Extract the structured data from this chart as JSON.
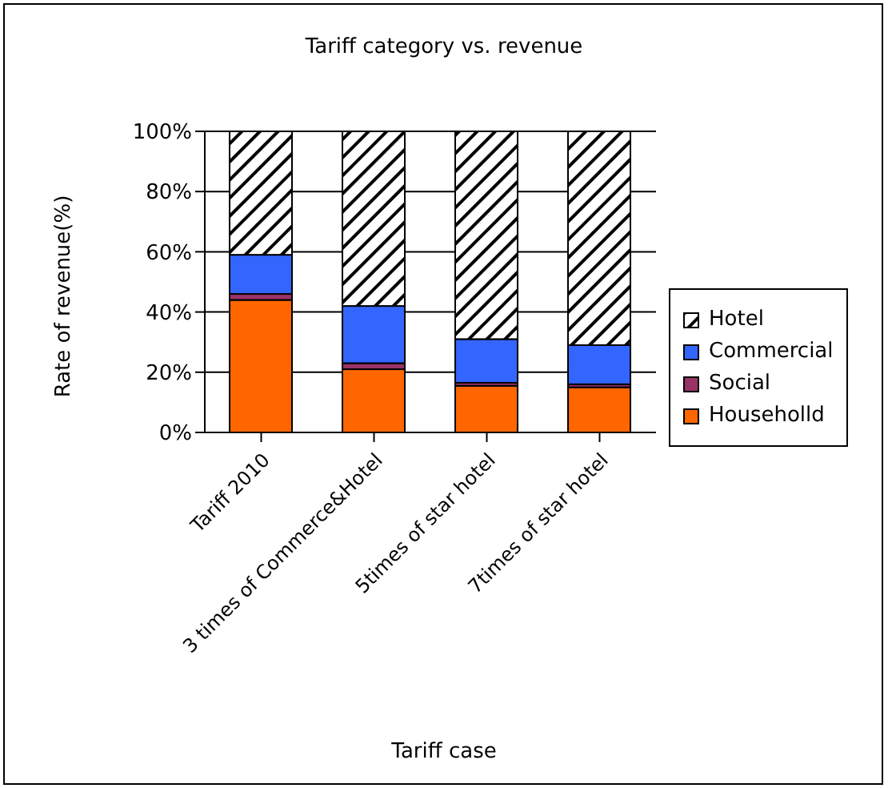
{
  "chart_data": {
    "type": "bar",
    "title": "Tariff category vs. revenue",
    "xlabel": "Tariff case",
    "ylabel": "Rate of revenue(%)",
    "categories": [
      "Tariff 2010",
      "3 times of Commerce&Hotel",
      "5times of star hotel",
      "7times of star hotel"
    ],
    "stacked": true,
    "series": [
      {
        "name": "Householld",
        "color": "#ff6600",
        "values": [
          44,
          21,
          15.5,
          15
        ]
      },
      {
        "name": "Social",
        "color": "#993366",
        "values": [
          2,
          2,
          1,
          1
        ]
      },
      {
        "name": "Commercial",
        "color": "#3366ff",
        "values": [
          13,
          19,
          14.5,
          13
        ]
      },
      {
        "name": "Hotel",
        "color": "#ffffff",
        "values": [
          41,
          58,
          69,
          71
        ]
      }
    ],
    "ylim": [
      0,
      100
    ],
    "yticks": [
      {
        "value": 0,
        "label": "0%"
      },
      {
        "value": 20,
        "label": "20%"
      },
      {
        "value": 40,
        "label": "40%"
      },
      {
        "value": 60,
        "label": "60%"
      },
      {
        "value": 80,
        "label": "80%"
      },
      {
        "value": 100,
        "label": "100%"
      }
    ],
    "grid": "y",
    "legend": "right"
  }
}
